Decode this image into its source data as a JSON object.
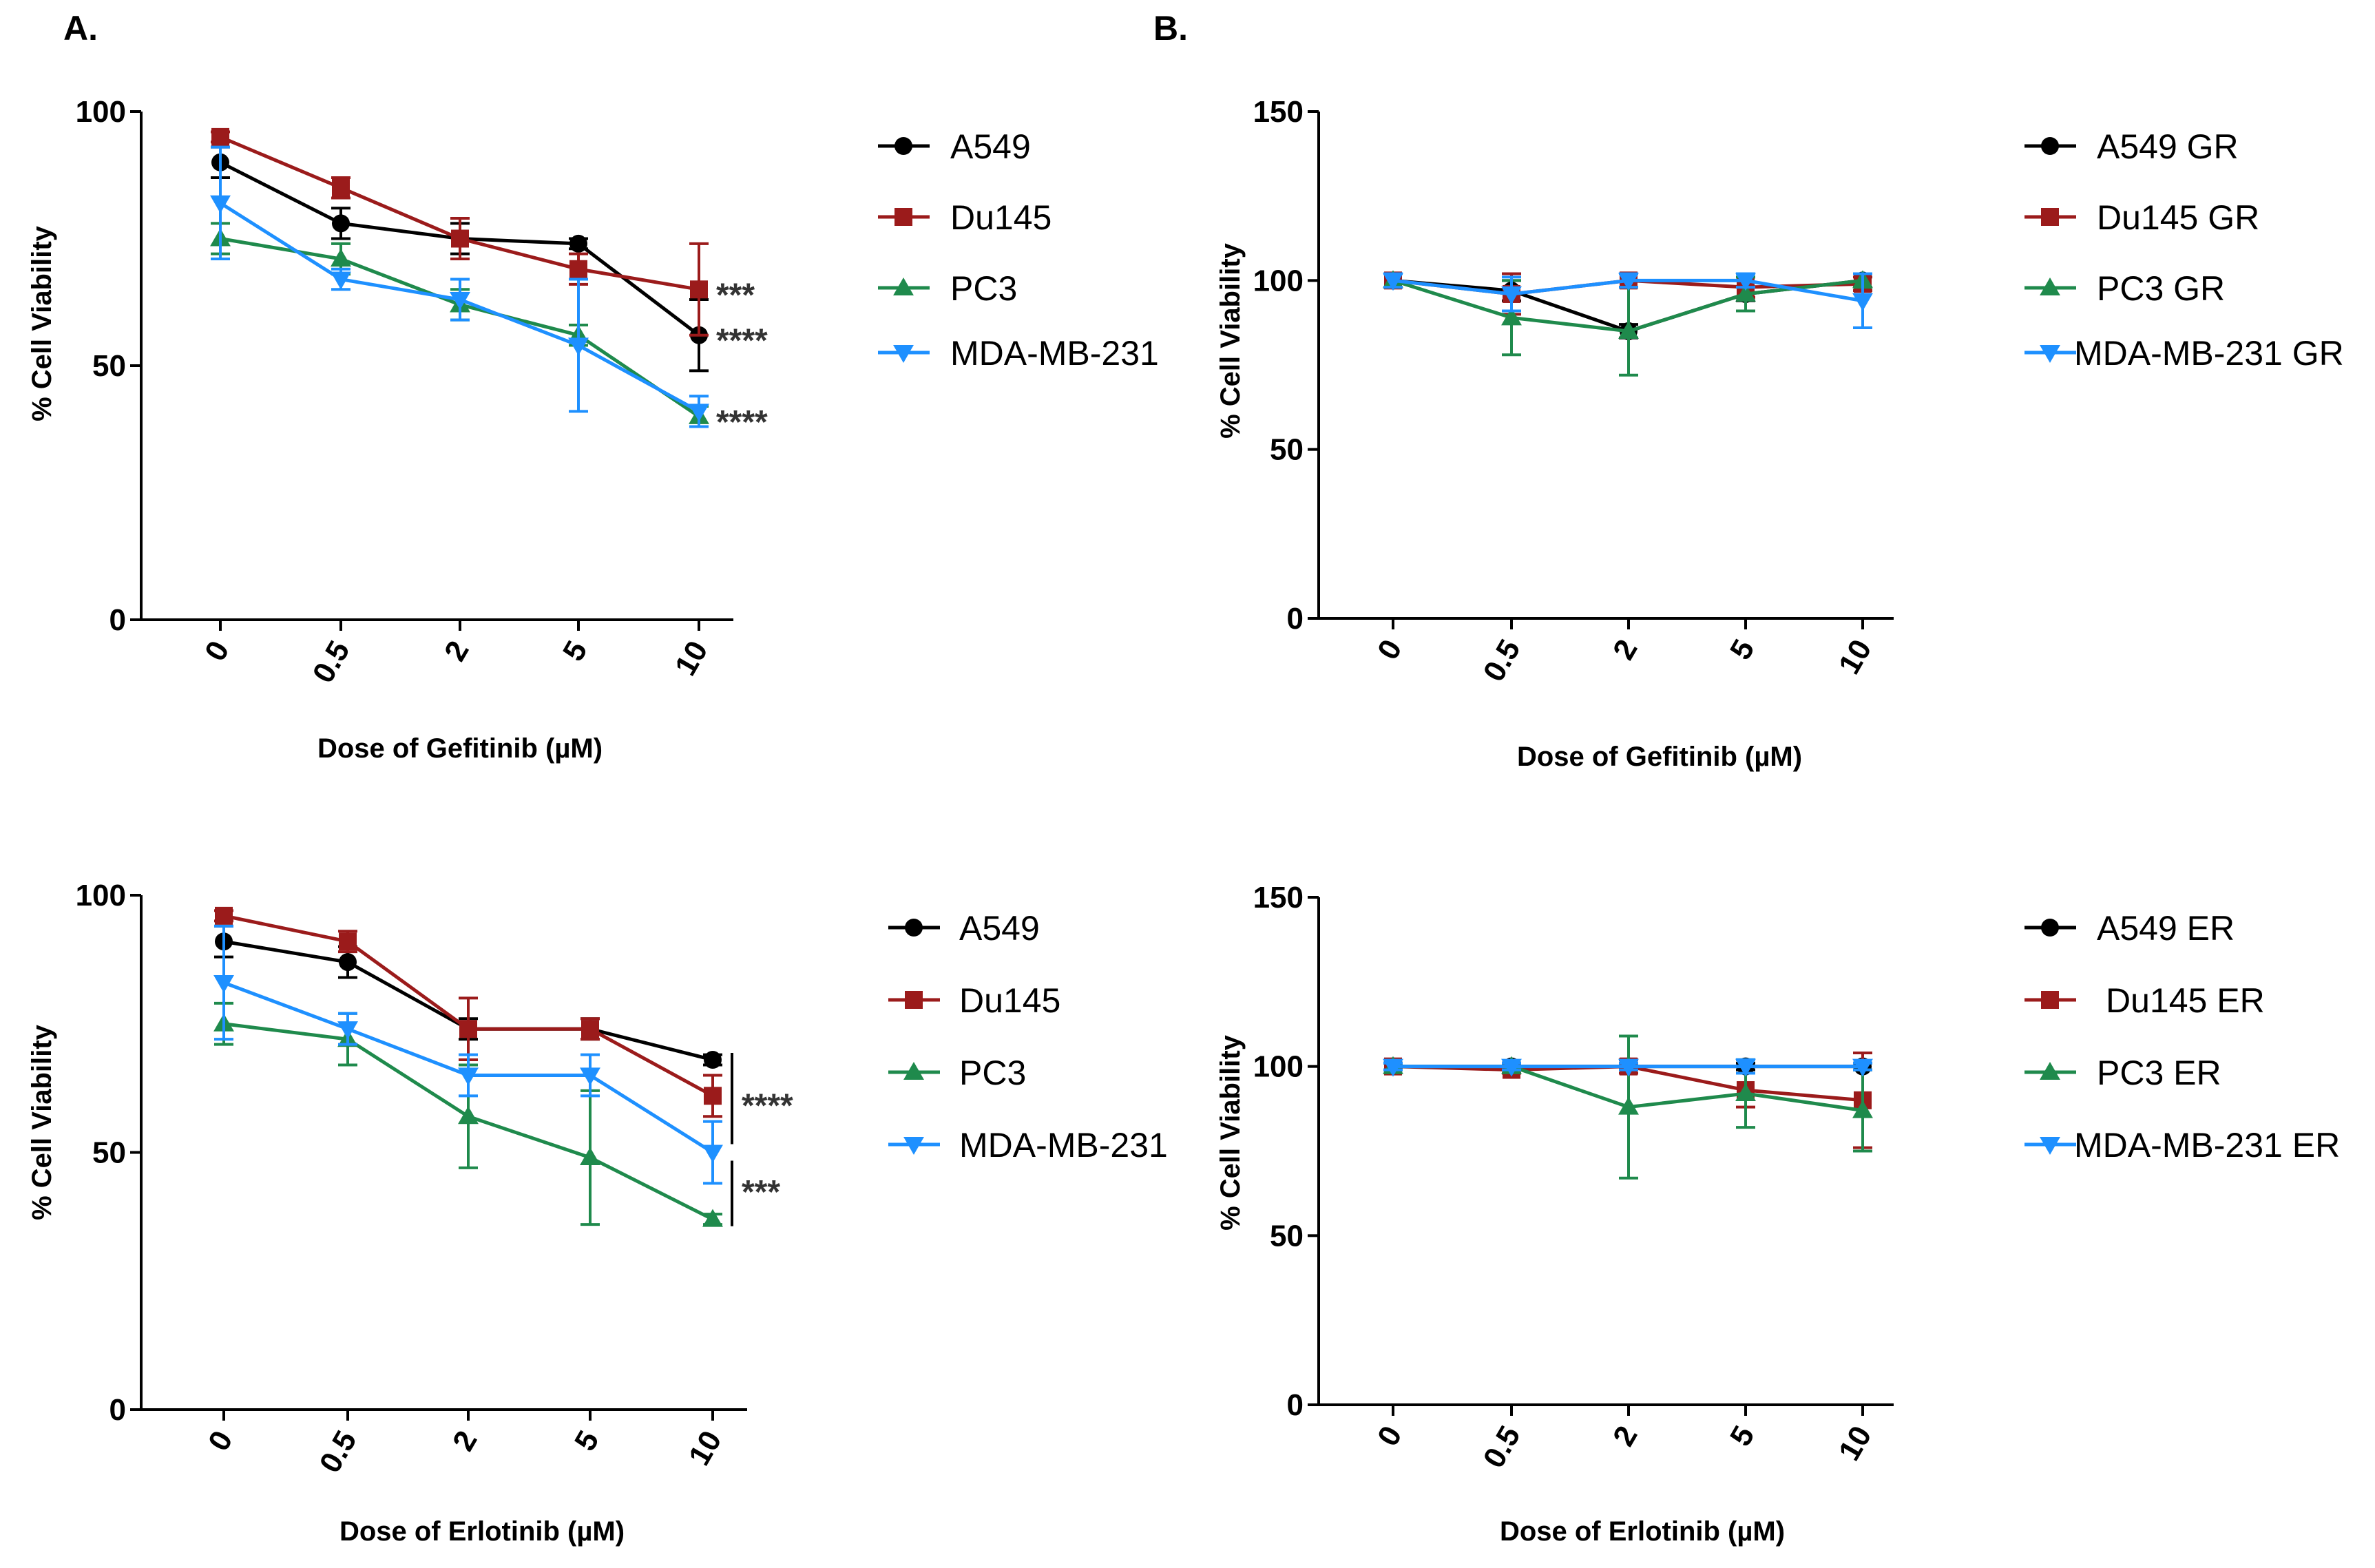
{
  "panel_labels": [
    "A.",
    "B."
  ],
  "colors": {
    "A549": "#000000",
    "Du145": "#9b1b1b",
    "PC3": "#1f8a4c",
    "MDA-MB-231": "#1e90ff"
  },
  "chart_data": [
    {
      "type": "line",
      "panel": "A.",
      "xlabel": "Dose of Gefitinib (µM)",
      "ylabel": "% Cell Viability",
      "categories": [
        "0",
        "0.5",
        "2",
        "5",
        "10"
      ],
      "ylim": [
        0,
        100
      ],
      "yticks": [
        0,
        50,
        100
      ],
      "series": [
        {
          "name": "A549",
          "color_key": "A549",
          "marker": "circle",
          "values": [
            90,
            78,
            75,
            74,
            56
          ],
          "errors": [
            3,
            3,
            3,
            1,
            7
          ]
        },
        {
          "name": "Du145",
          "color_key": "Du145",
          "marker": "square",
          "values": [
            95,
            85,
            75,
            69,
            65
          ],
          "errors": [
            1,
            2,
            4,
            3,
            9
          ]
        },
        {
          "name": "PC3",
          "color_key": "PC3",
          "marker": "triangle-up",
          "values": [
            75,
            71,
            62,
            56,
            40
          ],
          "errors": [
            3,
            3,
            3,
            2,
            2
          ]
        },
        {
          "name": "MDA-MB-231",
          "color_key": "MDA-MB-231",
          "marker": "triangle-down",
          "values": [
            82,
            67,
            63,
            54,
            41
          ],
          "errors": [
            11,
            2,
            4,
            13,
            3
          ]
        }
      ],
      "annotations": [
        {
          "text": "***",
          "series": "Du145",
          "at": "10"
        },
        {
          "text": "****",
          "series": "A549",
          "at": "10"
        },
        {
          "text": "****",
          "series": "PC3",
          "at": "10"
        }
      ]
    },
    {
      "type": "line",
      "panel": "B.",
      "xlabel": "Dose of Gefitinib (µM)",
      "ylabel": "% Cell Viability",
      "categories": [
        "0",
        "0.5",
        "2",
        "5",
        "10"
      ],
      "ylim": [
        0,
        150
      ],
      "yticks": [
        0,
        50,
        100,
        150
      ],
      "series": [
        {
          "name": "A549 GR",
          "color_key": "A549",
          "marker": "circle",
          "values": [
            100,
            97,
            85,
            96,
            100
          ],
          "errors": [
            2,
            3,
            2,
            2,
            2
          ]
        },
        {
          "name": "Du145 GR",
          "color_key": "Du145",
          "marker": "square",
          "values": [
            100,
            96,
            100,
            98,
            99
          ],
          "errors": [
            2,
            6,
            2,
            3,
            2
          ]
        },
        {
          "name": "PC3 GR",
          "color_key": "PC3",
          "marker": "triangle-up",
          "values": [
            100,
            89,
            85,
            96,
            100
          ],
          "errors": [
            2,
            11,
            13,
            5,
            2
          ]
        },
        {
          "name": "MDA-MB-231 GR",
          "color_key": "MDA-MB-231",
          "marker": "triangle-down",
          "values": [
            100,
            96,
            100,
            100,
            94
          ],
          "errors": [
            2,
            5,
            2,
            2,
            8
          ]
        }
      ],
      "annotations": []
    },
    {
      "type": "line",
      "panel": "",
      "xlabel": "Dose of Erlotinib (µM)",
      "ylabel": "% Cell Viability",
      "categories": [
        "0",
        "0.5",
        "2",
        "5",
        "10"
      ],
      "ylim": [
        0,
        100
      ],
      "yticks": [
        0,
        50,
        100
      ],
      "series": [
        {
          "name": "A549",
          "color_key": "A549",
          "marker": "circle",
          "values": [
            91,
            87,
            74,
            74,
            68
          ],
          "errors": [
            3,
            3,
            2,
            2,
            1
          ]
        },
        {
          "name": "Du145",
          "color_key": "Du145",
          "marker": "square",
          "values": [
            96,
            91,
            74,
            74,
            61
          ],
          "errors": [
            1,
            2,
            6,
            2,
            4
          ]
        },
        {
          "name": "PC3",
          "color_key": "PC3",
          "marker": "triangle-up",
          "values": [
            75,
            72,
            57,
            49,
            37
          ],
          "errors": [
            4,
            5,
            10,
            13,
            1
          ]
        },
        {
          "name": "MDA-MB-231",
          "color_key": "MDA-MB-231",
          "marker": "triangle-down",
          "values": [
            83,
            74,
            65,
            65,
            50
          ],
          "errors": [
            11,
            3,
            4,
            4,
            6
          ]
        }
      ],
      "annotations": [
        {
          "text": "****",
          "series": "A549",
          "at": "10"
        },
        {
          "text": "***",
          "series": "PC3",
          "at": "10"
        }
      ]
    },
    {
      "type": "line",
      "panel": "",
      "xlabel": "Dose of Erlotinib (µM)",
      "ylabel": "% Cell Viability",
      "categories": [
        "0",
        "0.5",
        "2",
        "5",
        "10"
      ],
      "ylim": [
        0,
        150
      ],
      "yticks": [
        0,
        50,
        100,
        150
      ],
      "series": [
        {
          "name": "A549 ER",
          "color_key": "A549",
          "marker": "circle",
          "values": [
            100,
            100,
            100,
            100,
            100
          ],
          "errors": [
            1,
            1,
            1,
            1,
            1
          ]
        },
        {
          "name": "Du145 ER",
          "color_key": "Du145",
          "marker": "square",
          "values": [
            100,
            99,
            100,
            93,
            90
          ],
          "errors": [
            1,
            1,
            2,
            5,
            14
          ]
        },
        {
          "name": "PC3 ER",
          "color_key": "PC3",
          "marker": "triangle-up",
          "values": [
            100,
            100,
            88,
            92,
            87
          ],
          "errors": [
            1,
            1,
            21,
            10,
            12
          ]
        },
        {
          "name": "MDA-MB-231 ER",
          "color_key": "MDA-MB-231",
          "marker": "triangle-down",
          "values": [
            100,
            100,
            100,
            100,
            100
          ],
          "errors": [
            1,
            1,
            1,
            2,
            1
          ]
        }
      ],
      "annotations": []
    }
  ]
}
